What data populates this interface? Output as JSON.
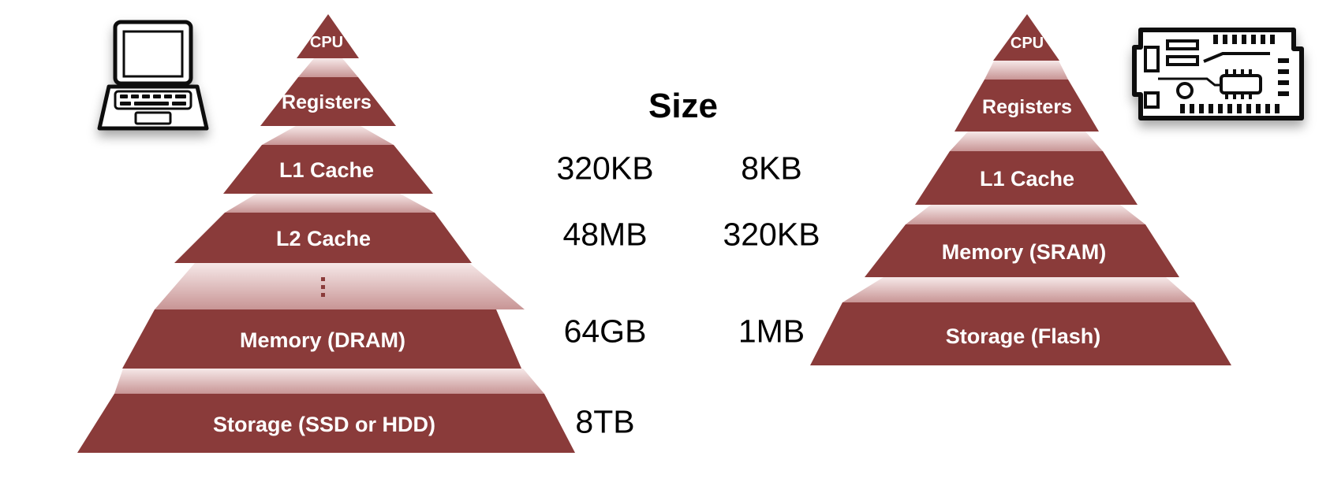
{
  "title": "Size",
  "colors": {
    "tier": "#8a3b3a",
    "gap_top": "#f4e4e4",
    "gap_bottom": "#c99a9a"
  },
  "laptop_pyramid": {
    "icon": "laptop-icon",
    "tiers": [
      "CPU",
      "Registers",
      "L1 Cache",
      "L2 Cache",
      "Memory (DRAM)",
      "Storage (SSD or HDD)"
    ],
    "ellipsis": "⋮"
  },
  "embedded_pyramid": {
    "icon": "circuit-board-icon",
    "tiers": [
      "CPU",
      "Registers",
      "L1 Cache",
      "Memory (SRAM)",
      "Storage (Flash)"
    ]
  },
  "sizes": {
    "laptop": [
      "320KB",
      "48MB",
      "64GB",
      "8TB"
    ],
    "embedded": [
      "8KB",
      "320KB",
      "1MB"
    ]
  }
}
